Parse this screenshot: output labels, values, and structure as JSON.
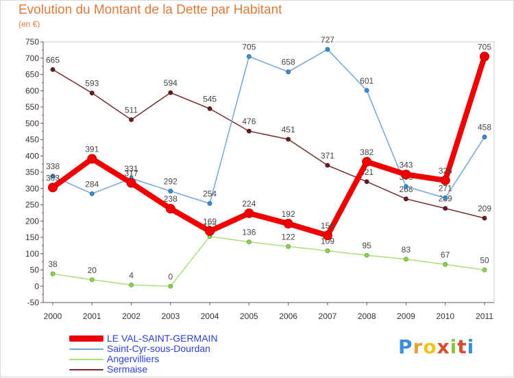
{
  "header": {
    "title": "Evolution du Montant de la Dette par Habitant",
    "unit": "(en €)"
  },
  "logo": {
    "letters": [
      "P",
      "r",
      "o",
      "x",
      "i",
      "t",
      "i"
    ],
    "colors": [
      "#3b8fd9",
      "#e8a13a",
      "#f0c419",
      "#d94b2b",
      "#8cc63f",
      "#d94b2b",
      "#3b8fd9"
    ]
  },
  "chart_data": {
    "type": "line",
    "title": "Evolution du Montant de la Dette par Habitant",
    "ylabel": "(en €)",
    "xlabel": "",
    "ylim": [
      -50,
      750
    ],
    "grid": false,
    "legend_position": "bottom-left",
    "categories": [
      "2000",
      "2001",
      "2002",
      "2003",
      "2004",
      "2005",
      "2006",
      "2007",
      "2008",
      "2009",
      "2010",
      "2011"
    ],
    "yticks": [
      "-50",
      "0",
      "50",
      "100",
      "150",
      "200",
      "250",
      "300",
      "350",
      "400",
      "450",
      "500",
      "550",
      "600",
      "650",
      "700",
      "750"
    ],
    "series": [
      {
        "name": "Sermaise",
        "color": "#7a2a2a",
        "values": [
          665,
          593,
          511,
          594,
          545,
          476,
          451,
          371,
          321,
          268,
          239,
          209
        ]
      },
      {
        "name": "Angervilliers",
        "color": "#a8df7a",
        "values": [
          38,
          20,
          4,
          0,
          153,
          136,
          122,
          109,
          95,
          83,
          67,
          50
        ]
      },
      {
        "name": "Saint-Cyr-sous-Dourdan",
        "color": "#6fa6d8",
        "values": [
          338,
          284,
          331,
          292,
          254,
          705,
          658,
          727,
          601,
          306,
          271,
          458
        ]
      },
      {
        "name": "LE VAL-SAINT-GERMAIN",
        "color": "#f00000",
        "values": [
          303,
          391,
          317,
          238,
          169,
          224,
          192,
          156,
          382,
          343,
          325,
          705
        ]
      }
    ]
  }
}
